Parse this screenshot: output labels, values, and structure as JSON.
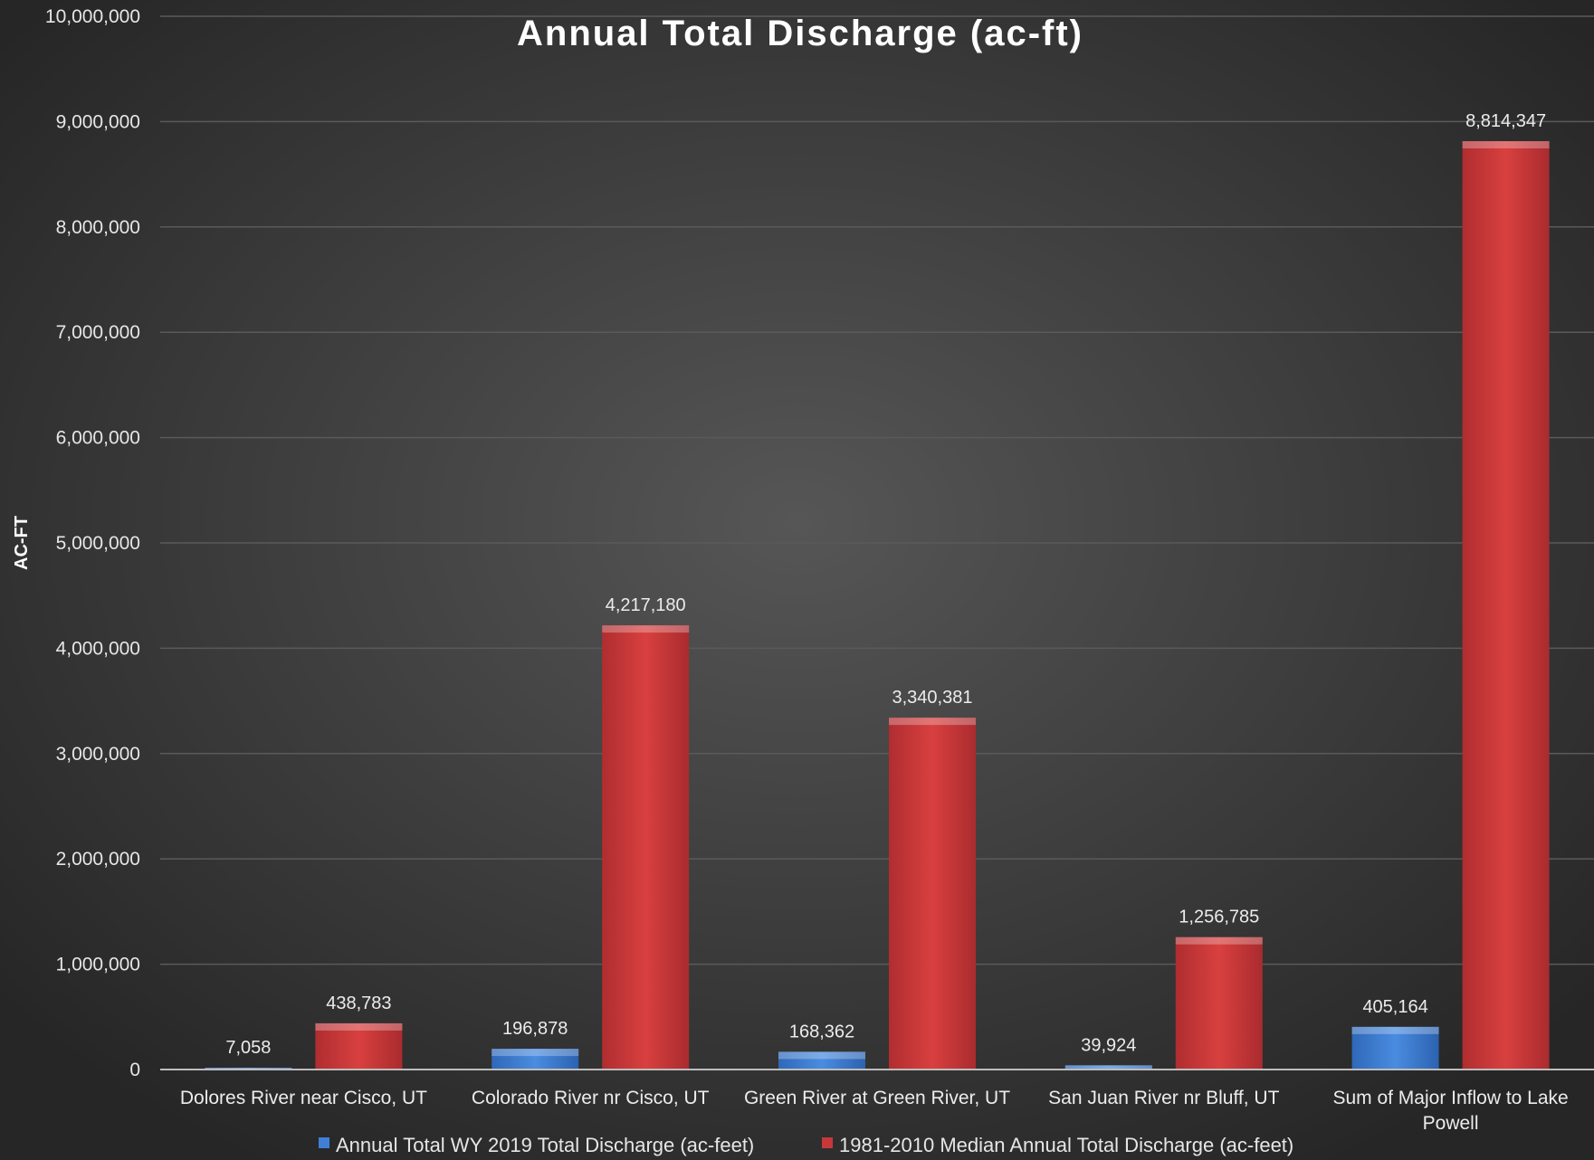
{
  "chart_data": {
    "type": "bar",
    "title": "Annual Total Discharge (ac-ft)",
    "ylabel": "AC-FT",
    "xlabel": "",
    "ylim": [
      0,
      10000000
    ],
    "ytick_step": 1000000,
    "grid": true,
    "legend_position": "bottom",
    "categories": [
      [
        "Dolores River near Cisco, UT"
      ],
      [
        "Colorado River nr Cisco, UT"
      ],
      [
        "Green River at Green River, UT"
      ],
      [
        "San Juan River nr Bluff, UT"
      ],
      [
        "Sum of Major Inflow to Lake",
        "Powell"
      ]
    ],
    "series": [
      {
        "name": "Annual Total WY 2019 Total Discharge (ac-feet)",
        "color": "#3f80d6",
        "values": [
          7058,
          196878,
          168362,
          39924,
          405164
        ]
      },
      {
        "name": "1981-2010 Median Annual Total Discharge (ac-feet)",
        "color": "#c8383a",
        "values": [
          438783,
          4217180,
          3340381,
          1256785,
          8814347
        ]
      }
    ]
  }
}
